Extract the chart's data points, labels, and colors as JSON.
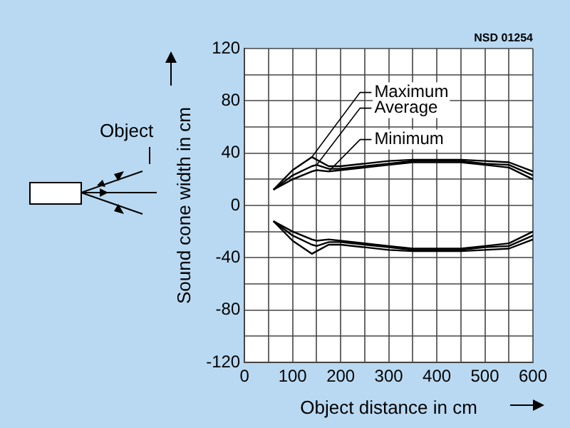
{
  "chart_data": {
    "type": "line",
    "xlabel": "Object distance in cm",
    "ylabel": "Sound cone width in cm",
    "x": [
      60,
      100,
      140,
      150,
      175,
      200,
      250,
      300,
      350,
      400,
      450,
      500,
      550,
      600
    ],
    "series": [
      {
        "name": "Maximum",
        "color": "#000000",
        "values": [
          12,
          27,
          37,
          35,
          30,
          30,
          32,
          34,
          35,
          35,
          35,
          34,
          33,
          26
        ]
      },
      {
        "name": "Average",
        "color": "#000000",
        "values": [
          12,
          23,
          30,
          31,
          28,
          28,
          30,
          32,
          34,
          34,
          34,
          32,
          31,
          23
        ]
      },
      {
        "name": "Minimum",
        "color": "#000000",
        "values": [
          12,
          20,
          26,
          27,
          26,
          27,
          29,
          31,
          33,
          33,
          33,
          31,
          29,
          20
        ]
      },
      {
        "color": "#000000",
        "values": [
          -12,
          -27,
          -37,
          -35,
          -30,
          -30,
          -32,
          -34,
          -35,
          -35,
          -35,
          -34,
          -33,
          -26
        ]
      },
      {
        "color": "#000000",
        "values": [
          -12,
          -23,
          -30,
          -31,
          -28,
          -28,
          -30,
          -32,
          -34,
          -34,
          -34,
          -32,
          -31,
          -23
        ]
      },
      {
        "color": "#000000",
        "values": [
          -12,
          -20,
          -26,
          -27,
          -26,
          -27,
          -29,
          -31,
          -33,
          -33,
          -33,
          -31,
          -29,
          -20
        ]
      }
    ],
    "xlim": [
      0,
      600
    ],
    "xticks": [
      0,
      {
        "value": 50,
        "label": null
      },
      100,
      {
        "value": 150,
        "label": null
      },
      200,
      {
        "value": 250,
        "label": null
      },
      300,
      {
        "value": 350,
        "label": null
      },
      400,
      {
        "value": 450,
        "label": null
      },
      500,
      {
        "value": 550,
        "label": null
      },
      600
    ],
    "ylim": [
      -120,
      120
    ],
    "yticks": [
      -120,
      {
        "value": -100,
        "label": null
      },
      -80,
      {
        "value": -60,
        "label": null
      },
      -40,
      {
        "value": -20,
        "label": null
      },
      0,
      {
        "value": 20,
        "label": null
      },
      40,
      {
        "value": 60,
        "label": null
      },
      80,
      {
        "value": 100,
        "label": null
      },
      120
    ],
    "grid": true,
    "legend": false,
    "marker": "none",
    "line_style": "solid",
    "annotations": [
      "NSD 01254",
      "Object"
    ]
  }
}
